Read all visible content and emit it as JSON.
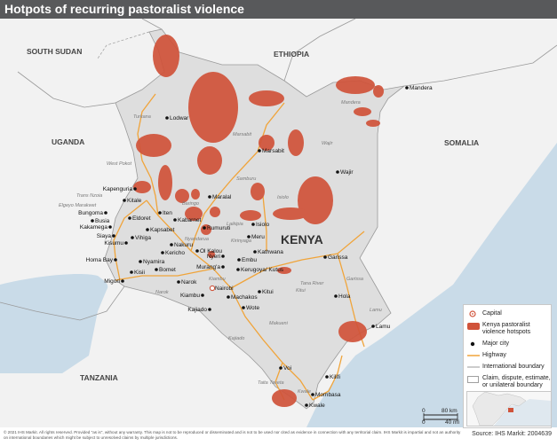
{
  "title": "Hotpots of recurring pastoralist violence",
  "country_label": "KENYA",
  "neighbors": [
    "SOUTH SUDAN",
    "ETHIOPIA",
    "UGANDA",
    "SOMALIA",
    "TANZANIA"
  ],
  "major_cities": [
    "Lodwar",
    "Marsabit",
    "Mandera",
    "Wajir",
    "Kapenguria",
    "Kitale",
    "Bungoma",
    "Busia",
    "Kakamega",
    "Siaya",
    "Kisumu",
    "Vihiga",
    "Eldoret",
    "Iten",
    "Kapsabet",
    "Kabarnet",
    "Maralal",
    "Rumuruti",
    "Isiolo",
    "Meru",
    "Nakuru",
    "Ol Kalou",
    "Nyeri",
    "Embu",
    "Kathwana",
    "Kericho",
    "Nyamira",
    "Homa Bay",
    "Kisii",
    "Bomet",
    "Migori",
    "Narok",
    "Murang'a",
    "Kerugoya/ Kutus",
    "Nairobi",
    "Kiambu",
    "Machakos",
    "Kitui",
    "Wote",
    "Kajiado",
    "Garissa",
    "Hola",
    "Lamu",
    "Voi",
    "Kilifi",
    "Mombasa",
    "Kwale"
  ],
  "region_labels": [
    "Turkana",
    "West Pokot",
    "Trans Nzoia",
    "Elgeyo Marakwet",
    "Baringo",
    "Samburu",
    "Marsabit",
    "Isiolo",
    "Wajir",
    "Mandera",
    "Laikipia",
    "Nyandarua",
    "Kirinyaga",
    "Kiambu",
    "Narok",
    "Kajiado",
    "Makueni",
    "Kitui",
    "Garissa",
    "Tana River",
    "Lamu",
    "Taita Taveta",
    "Kwale"
  ],
  "legend": {
    "capital": "Capital",
    "hotspots": "Kenya pastoralist violence hotspots",
    "major_city": "Major city",
    "highway": "Highway",
    "intl_boundary": "International boundary",
    "claim": "Claim, dispute, estimate, or unilateral boundary"
  },
  "scale": {
    "zero": "0",
    "km": "80 km",
    "mi": "40 mi"
  },
  "source": "Source: IHS Markit: 2004639",
  "copyright": "© 2021 IHS Markit. All rights reserved. Provided \"as is\", without any warranty. This map is not to be reproduced or disseminated and is not to be used nor cited as evidence in connection with any territorial claim. IHS Markit is impartial and not an authority on international boundaries which might be subject to unresolved claims by multiple jurisdictions.",
  "colors": {
    "land": "#dedede",
    "neighbor": "#f2f2f2",
    "water": "#c9dbe8",
    "hotspot": "#d0533a",
    "highway": "#f0a43a",
    "title_bar": "#58595b"
  }
}
